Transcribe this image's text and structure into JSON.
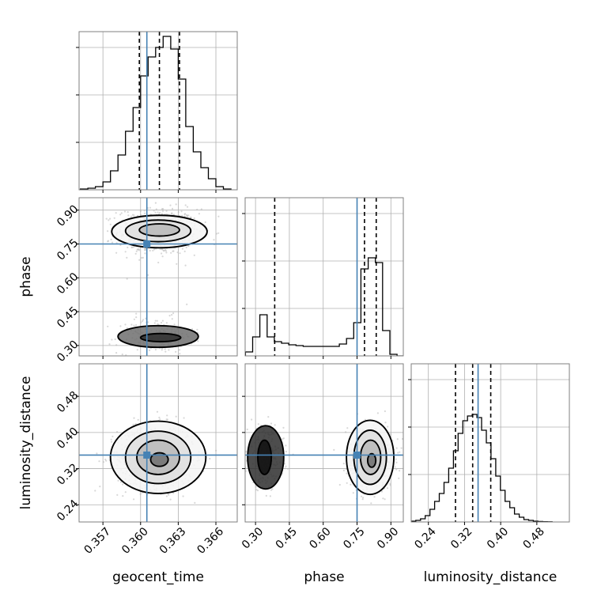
{
  "chart_data": {
    "type": "corner",
    "parameters": [
      "geocent_time",
      "phase",
      "luminosity_distance"
    ],
    "axis_labels": {
      "geocent_time": "geocent_time",
      "phase": "phase",
      "luminosity_distance": "luminosity_distance"
    },
    "ranges": {
      "geocent_time": [
        0.3551,
        0.3677
      ],
      "phase": [
        0.254,
        0.955
      ],
      "luminosity_distance": [
        0.202,
        0.552
      ]
    },
    "ticks": {
      "geocent_time": [
        0.357,
        0.36,
        0.363,
        0.366
      ],
      "phase": [
        0.3,
        0.45,
        0.6,
        0.75,
        0.9
      ],
      "luminosity_distance": [
        0.24,
        0.32,
        0.4,
        0.48
      ]
    },
    "tick_labels": {
      "geocent_time": [
        "0.357",
        "0.360",
        "0.363",
        "0.366"
      ],
      "phase": [
        "0.30",
        "0.45",
        "0.60",
        "0.75",
        "0.90"
      ],
      "luminosity_distance": [
        "0.24",
        "0.32",
        "0.40",
        "0.48"
      ]
    },
    "truths": {
      "geocent_time": 0.3605,
      "phase": 0.75,
      "luminosity_distance": 0.35
    },
    "quantiles": {
      "geocent_time": [
        0.3599,
        0.3615,
        0.3631
      ],
      "phase": [
        0.385,
        0.783,
        0.835
      ],
      "luminosity_distance": [
        0.3,
        0.338,
        0.378
      ]
    },
    "histograms": {
      "geocent_time": {
        "bin_centers": [
          0.3555,
          0.3561,
          0.3567,
          0.3573,
          0.3579,
          0.3585,
          0.3591,
          0.3597,
          0.3603,
          0.3609,
          0.3615,
          0.3621,
          0.3627,
          0.3633,
          0.3639,
          0.3645,
          0.3651,
          0.3657,
          0.3663,
          0.3669
        ],
        "counts": [
          0.005,
          0.01,
          0.02,
          0.05,
          0.12,
          0.22,
          0.37,
          0.52,
          0.72,
          0.84,
          0.9,
          0.97,
          0.89,
          0.7,
          0.4,
          0.24,
          0.14,
          0.07,
          0.02,
          0.005
        ]
      },
      "phase": {
        "bin_centers": [
          0.2713,
          0.3033,
          0.3353,
          0.3673,
          0.3993,
          0.4313,
          0.4633,
          0.4953,
          0.5273,
          0.5593,
          0.5913,
          0.6233,
          0.6553,
          0.6873,
          0.7193,
          0.7513,
          0.7833,
          0.8153,
          0.8473,
          0.8793,
          0.9113,
          0.9433
        ],
        "counts": [
          0.025,
          0.12,
          0.26,
          0.12,
          0.09,
          0.08,
          0.07,
          0.065,
          0.06,
          0.06,
          0.06,
          0.06,
          0.06,
          0.075,
          0.11,
          0.21,
          0.55,
          0.62,
          0.59,
          0.16,
          0.01,
          0.0
        ]
      },
      "luminosity_distance": {
        "bin_centers": [
          0.207,
          0.2174,
          0.2278,
          0.2382,
          0.2486,
          0.259,
          0.2694,
          0.2798,
          0.2902,
          0.3006,
          0.311,
          0.3214,
          0.3318,
          0.3422,
          0.3526,
          0.363,
          0.3734,
          0.3838,
          0.3942,
          0.4046,
          0.415,
          0.4254,
          0.4358,
          0.4462,
          0.4566,
          0.467,
          0.4774,
          0.4878,
          0.4982,
          0.5086
        ],
        "counts": [
          0.005,
          0.01,
          0.02,
          0.04,
          0.08,
          0.13,
          0.18,
          0.25,
          0.34,
          0.45,
          0.56,
          0.64,
          0.67,
          0.68,
          0.66,
          0.58,
          0.5,
          0.4,
          0.29,
          0.2,
          0.13,
          0.09,
          0.05,
          0.03,
          0.015,
          0.01,
          0.005,
          0.003,
          0.002,
          0.001
        ]
      }
    },
    "scatter_pairs": [
      {
        "x": "geocent_time",
        "y": "phase",
        "clusters": [
          {
            "center": [
              0.3614,
              0.805
            ],
            "spread": [
              0.0016,
              0.05
            ],
            "n": 700
          },
          {
            "center": [
              0.3612,
              0.345
            ],
            "spread": [
              0.0015,
              0.04
            ],
            "n": 200
          }
        ]
      },
      {
        "x": "geocent_time",
        "y": "luminosity_distance",
        "clusters": [
          {
            "center": [
              0.3612,
              0.345
            ],
            "spread": [
              0.0015,
              0.035
            ],
            "n": 900
          }
        ]
      },
      {
        "x": "phase",
        "y": "luminosity_distance",
        "clusters": [
          {
            "center": [
              0.808,
              0.345
            ],
            "spread": [
              0.05,
              0.035
            ],
            "n": 650
          },
          {
            "center": [
              0.345,
              0.345
            ],
            "spread": [
              0.04,
              0.035
            ],
            "n": 250
          }
        ]
      }
    ],
    "contours": [
      {
        "x": "geocent_time",
        "y": "phase",
        "levels": [
          {
            "center": [
              0.3615,
              0.805
            ],
            "rx": 0.0038,
            "ry": 0.072
          },
          {
            "center": [
              0.3614,
              0.808
            ],
            "rx": 0.0026,
            "ry": 0.048
          },
          {
            "center": [
              0.3615,
              0.812
            ],
            "rx": 0.0016,
            "ry": 0.027
          },
          {
            "center": [
              0.3614,
              0.34
            ],
            "rx": 0.0032,
            "ry": 0.048
          },
          {
            "center": [
              0.3616,
              0.335
            ],
            "rx": 0.0016,
            "ry": 0.018
          }
        ]
      },
      {
        "x": "geocent_time",
        "y": "luminosity_distance",
        "levels": [
          {
            "center": [
              0.3614,
              0.345
            ],
            "rx": 0.0038,
            "ry": 0.08
          },
          {
            "center": [
              0.3614,
              0.345
            ],
            "rx": 0.0026,
            "ry": 0.058
          },
          {
            "center": [
              0.3614,
              0.345
            ],
            "rx": 0.0017,
            "ry": 0.038
          },
          {
            "center": [
              0.3615,
              0.34
            ],
            "rx": 0.0007,
            "ry": 0.015
          }
        ]
      },
      {
        "x": "phase",
        "y": "luminosity_distance",
        "levels": [
          {
            "center": [
              0.808,
              0.345
            ],
            "rx": 0.105,
            "ry": 0.082
          },
          {
            "center": [
              0.808,
              0.345
            ],
            "rx": 0.072,
            "ry": 0.06
          },
          {
            "center": [
              0.81,
              0.345
            ],
            "rx": 0.045,
            "ry": 0.038
          },
          {
            "center": [
              0.815,
              0.338
            ],
            "rx": 0.018,
            "ry": 0.015
          },
          {
            "center": [
              0.345,
              0.345
            ],
            "rx": 0.08,
            "ry": 0.07
          },
          {
            "center": [
              0.34,
              0.345
            ],
            "rx": 0.03,
            "ry": 0.038
          }
        ]
      }
    ],
    "grid": true
  }
}
